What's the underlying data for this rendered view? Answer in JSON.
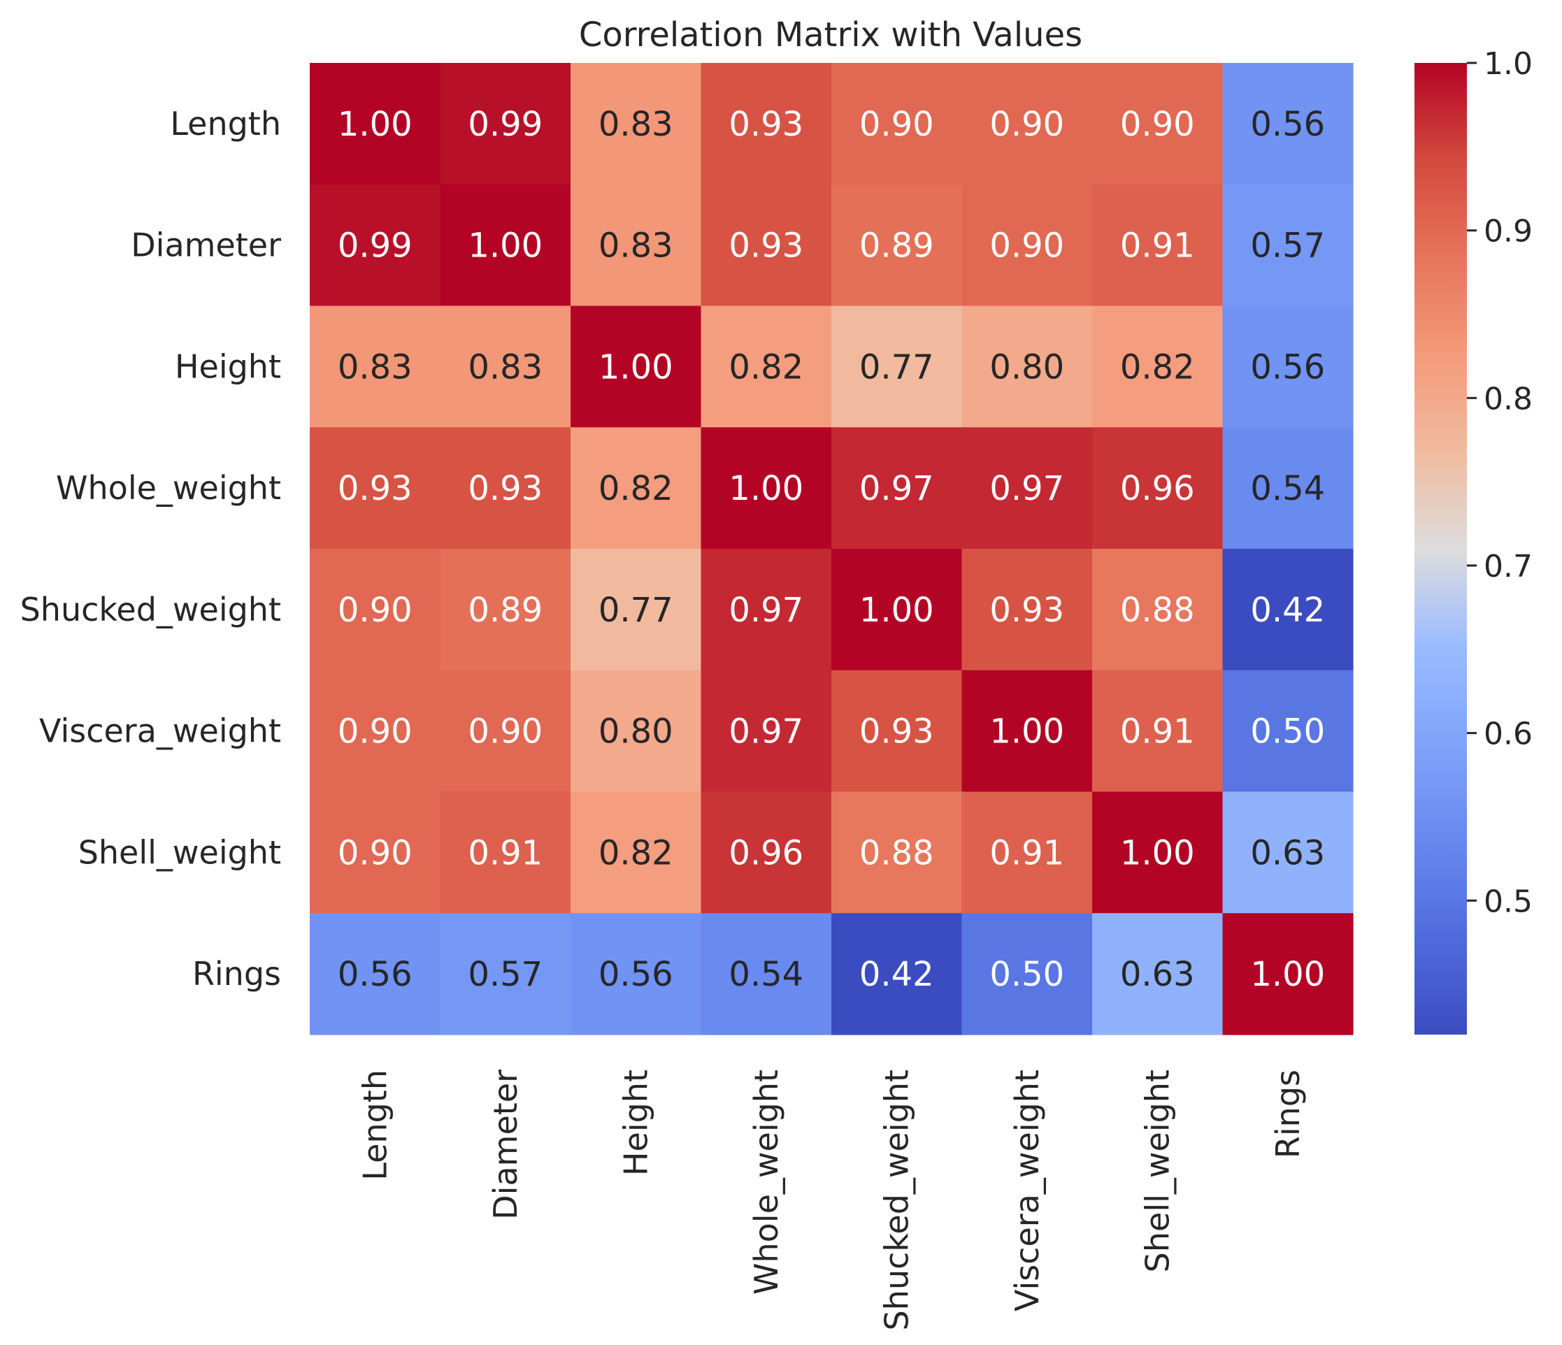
{
  "chart_data": {
    "type": "heatmap",
    "title": "Correlation Matrix with Values",
    "xlabel": "",
    "ylabel": "",
    "rows": [
      "Length",
      "Diameter",
      "Height",
      "Whole_weight",
      "Shucked_weight",
      "Viscera_weight",
      "Shell_weight",
      "Rings"
    ],
    "columns": [
      "Length",
      "Diameter",
      "Height",
      "Whole_weight",
      "Shucked_weight",
      "Viscera_weight",
      "Shell_weight",
      "Rings"
    ],
    "values": [
      [
        1.0,
        0.99,
        0.83,
        0.93,
        0.9,
        0.9,
        0.9,
        0.56
      ],
      [
        0.99,
        1.0,
        0.83,
        0.93,
        0.89,
        0.9,
        0.91,
        0.57
      ],
      [
        0.83,
        0.83,
        1.0,
        0.82,
        0.77,
        0.8,
        0.82,
        0.56
      ],
      [
        0.93,
        0.93,
        0.82,
        1.0,
        0.97,
        0.97,
        0.96,
        0.54
      ],
      [
        0.9,
        0.89,
        0.77,
        0.97,
        1.0,
        0.93,
        0.88,
        0.42
      ],
      [
        0.9,
        0.9,
        0.8,
        0.97,
        0.93,
        1.0,
        0.91,
        0.5
      ],
      [
        0.9,
        0.91,
        0.82,
        0.96,
        0.88,
        0.91,
        1.0,
        0.63
      ],
      [
        0.56,
        0.57,
        0.56,
        0.54,
        0.42,
        0.5,
        0.63,
        1.0
      ]
    ],
    "value_format": "2 decimals",
    "colormap": "coolwarm",
    "color_range": [
      0.42,
      1.0
    ],
    "colorbar": {
      "ticks": [
        0.5,
        0.6,
        0.7,
        0.8,
        0.9,
        1.0
      ],
      "tick_labels": [
        "0.5",
        "0.6",
        "0.7",
        "0.8",
        "0.9",
        "1.0"
      ],
      "placement": "right"
    },
    "grid": false
  },
  "colors": {
    "cmap_low": "#3b4cc0",
    "cmap_mid": "#dddddd",
    "cmap_high": "#b40426",
    "text_dark": "#262626",
    "text_light": "#ffffff"
  }
}
